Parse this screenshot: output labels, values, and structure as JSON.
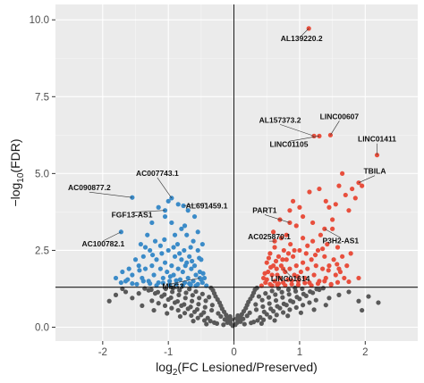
{
  "chart_data": {
    "type": "scatter",
    "title": "",
    "xlabel": "log2(FC Lesioned/Preserved)",
    "xlabel_parts": {
      "prefix": "log",
      "sub": "2",
      "rest": "(FC Lesioned/Preserved)"
    },
    "ylabel": "-log10(FDR)",
    "ylabel_parts": {
      "prefix": "−log",
      "sub": "10",
      "rest": "(FDR)"
    },
    "xlim": [
      -2.72,
      2.8
    ],
    "ylim": [
      -0.45,
      10.5
    ],
    "x_ticks": [
      -2,
      -1,
      0,
      1,
      2
    ],
    "y_ticks": [
      0.0,
      2.5,
      5.0,
      7.5,
      10.0
    ],
    "x_tick_labels": [
      "-2",
      "-1",
      "0",
      "1",
      "2"
    ],
    "y_tick_labels": [
      "0.0",
      "2.5",
      "5.0",
      "7.5",
      "10.0"
    ],
    "grid": true,
    "background": "#ebebeb",
    "reference_lines": {
      "vertical_x": 0,
      "horizontal_y": 1.3
    },
    "colors": {
      "down": "#3b8bc8",
      "up": "#e84f3d",
      "ns": "#595959",
      "label_segment": "#333333"
    },
    "highlighted_genes": [
      {
        "name": "AL139220.2",
        "x": 1.14,
        "y": 9.72,
        "group": "up"
      },
      {
        "name": "AL157373.2",
        "x": 1.22,
        "y": 6.22,
        "group": "up"
      },
      {
        "name": "LINC01105",
        "x": 1.3,
        "y": 6.22,
        "group": "up"
      },
      {
        "name": "LINC00607",
        "x": 1.47,
        "y": 6.25,
        "group": "up"
      },
      {
        "name": "LINC01411",
        "x": 2.18,
        "y": 5.6,
        "group": "up"
      },
      {
        "name": "TBILA",
        "x": 1.9,
        "y": 4.7,
        "group": "up"
      },
      {
        "name": "PART1",
        "x": 0.85,
        "y": 3.4,
        "group": "up"
      },
      {
        "name": "P3H2-AS1",
        "x": 1.38,
        "y": 3.2,
        "group": "up"
      },
      {
        "name": "AC025870.1",
        "x": 0.62,
        "y": 2.8,
        "group": "up"
      },
      {
        "name": "LINC01614",
        "x": 0.75,
        "y": 1.9,
        "group": "up"
      },
      {
        "name": "AC090877.2",
        "x": -1.55,
        "y": 4.22,
        "group": "down"
      },
      {
        "name": "AC007743.1",
        "x": -0.95,
        "y": 4.2,
        "group": "down"
      },
      {
        "name": "AL691459.1",
        "x": -0.77,
        "y": 3.95,
        "group": "down"
      },
      {
        "name": "FGF13-AS1",
        "x": -1.05,
        "y": 3.8,
        "group": "down"
      },
      {
        "name": "AC100782.1",
        "x": -1.72,
        "y": 3.1,
        "group": "down"
      },
      {
        "name": "MEG3",
        "x": -0.52,
        "y": 1.6,
        "group": "down"
      }
    ],
    "up_points": [
      [
        0.42,
        1.35
      ],
      [
        0.45,
        1.6
      ],
      [
        0.48,
        1.45
      ],
      [
        0.5,
        2.1
      ],
      [
        0.52,
        1.8
      ],
      [
        0.55,
        1.4
      ],
      [
        0.55,
        2.4
      ],
      [
        0.58,
        1.7
      ],
      [
        0.6,
        2.0
      ],
      [
        0.62,
        1.5
      ],
      [
        0.62,
        2.6
      ],
      [
        0.65,
        1.9
      ],
      [
        0.66,
        1.38
      ],
      [
        0.68,
        2.3
      ],
      [
        0.7,
        1.6
      ],
      [
        0.72,
        2.0
      ],
      [
        0.72,
        2.9
      ],
      [
        0.75,
        1.45
      ],
      [
        0.76,
        2.5
      ],
      [
        0.78,
        1.8
      ],
      [
        0.8,
        2.2
      ],
      [
        0.8,
        3.0
      ],
      [
        0.82,
        1.55
      ],
      [
        0.85,
        1.9
      ],
      [
        0.86,
        2.7
      ],
      [
        0.88,
        1.4
      ],
      [
        0.9,
        2.3
      ],
      [
        0.92,
        1.7
      ],
      [
        0.95,
        2.0
      ],
      [
        0.95,
        3.3
      ],
      [
        0.98,
        1.5
      ],
      [
        1.0,
        2.5
      ],
      [
        1.02,
        1.8
      ],
      [
        1.05,
        2.1
      ],
      [
        1.05,
        3.6
      ],
      [
        1.08,
        1.6
      ],
      [
        1.1,
        2.4
      ],
      [
        1.12,
        1.9
      ],
      [
        1.15,
        1.45
      ],
      [
        1.18,
        2.2
      ],
      [
        1.2,
        2.8
      ],
      [
        1.22,
        1.7
      ],
      [
        1.25,
        2.0
      ],
      [
        1.28,
        2.5
      ],
      [
        1.3,
        1.5
      ],
      [
        1.32,
        3.0
      ],
      [
        1.35,
        1.9
      ],
      [
        1.38,
        2.3
      ],
      [
        1.4,
        1.6
      ],
      [
        1.42,
        2.7
      ],
      [
        1.45,
        2.0
      ],
      [
        1.48,
        1.4
      ],
      [
        1.5,
        3.5
      ],
      [
        1.52,
        2.2
      ],
      [
        1.55,
        1.7
      ],
      [
        1.58,
        2.6
      ],
      [
        1.6,
        1.9
      ],
      [
        1.65,
        2.3
      ],
      [
        1.7,
        4.3
      ],
      [
        1.45,
        3.9
      ],
      [
        1.55,
        4.0
      ],
      [
        1.6,
        4.6
      ],
      [
        1.65,
        5.0
      ],
      [
        1.15,
        4.4
      ],
      [
        1.3,
        4.5
      ],
      [
        1.0,
        3.9
      ],
      [
        0.9,
        4.1
      ],
      [
        1.75,
        3.8
      ],
      [
        1.8,
        4.5
      ],
      [
        1.85,
        4.2
      ],
      [
        1.95,
        4.6
      ],
      [
        1.4,
        4.1
      ],
      [
        1.5,
        3.2
      ],
      [
        1.2,
        3.4
      ],
      [
        0.7,
        3.5
      ],
      [
        0.85,
        3.8
      ],
      [
        0.6,
        3.1
      ],
      [
        0.5,
        1.55
      ],
      [
        0.58,
        1.35
      ],
      [
        0.68,
        1.42
      ],
      [
        0.78,
        1.36
      ],
      [
        0.88,
        1.52
      ],
      [
        0.98,
        1.38
      ],
      [
        1.08,
        1.44
      ],
      [
        1.18,
        1.36
      ],
      [
        1.28,
        1.42
      ],
      [
        1.38,
        1.5
      ],
      [
        1.48,
        1.38
      ],
      [
        1.58,
        1.46
      ],
      [
        1.68,
        1.6
      ],
      [
        1.75,
        1.48
      ],
      [
        1.62,
        1.8
      ],
      [
        1.72,
        2.0
      ],
      [
        1.9,
        1.6
      ],
      [
        1.35,
        2.55
      ],
      [
        1.05,
        2.9
      ],
      [
        0.92,
        2.5
      ],
      [
        0.74,
        2.2
      ],
      [
        0.66,
        1.7
      ],
      [
        0.56,
        1.95
      ],
      [
        0.47,
        1.75
      ],
      [
        0.53,
        2.25
      ],
      [
        0.64,
        2.15
      ],
      [
        0.83,
        2.4
      ],
      [
        0.97,
        1.65
      ],
      [
        1.12,
        2.65
      ],
      [
        1.24,
        2.35
      ],
      [
        1.44,
        1.85
      ],
      [
        1.57,
        2.05
      ],
      [
        1.78,
        2.4
      ]
    ],
    "down_points": [
      [
        -0.42,
        1.35
      ],
      [
        -0.45,
        1.6
      ],
      [
        -0.48,
        1.45
      ],
      [
        -0.5,
        2.2
      ],
      [
        -0.52,
        1.8
      ],
      [
        -0.55,
        1.4
      ],
      [
        -0.55,
        2.5
      ],
      [
        -0.58,
        1.7
      ],
      [
        -0.6,
        2.0
      ],
      [
        -0.62,
        1.5
      ],
      [
        -0.62,
        2.8
      ],
      [
        -0.65,
        1.9
      ],
      [
        -0.66,
        1.38
      ],
      [
        -0.68,
        2.3
      ],
      [
        -0.7,
        1.6
      ],
      [
        -0.72,
        2.1
      ],
      [
        -0.72,
        3.0
      ],
      [
        -0.75,
        1.45
      ],
      [
        -0.76,
        2.5
      ],
      [
        -0.78,
        1.8
      ],
      [
        -0.8,
        2.2
      ],
      [
        -0.8,
        3.2
      ],
      [
        -0.82,
        1.55
      ],
      [
        -0.85,
        1.9
      ],
      [
        -0.86,
        2.7
      ],
      [
        -0.88,
        1.4
      ],
      [
        -0.9,
        2.3
      ],
      [
        -0.92,
        1.7
      ],
      [
        -0.95,
        2.0
      ],
      [
        -0.95,
        3.4
      ],
      [
        -0.98,
        1.5
      ],
      [
        -1.0,
        2.5
      ],
      [
        -1.02,
        1.8
      ],
      [
        -1.05,
        2.1
      ],
      [
        -1.05,
        3.6
      ],
      [
        -1.08,
        1.6
      ],
      [
        -1.1,
        2.4
      ],
      [
        -1.12,
        1.9
      ],
      [
        -1.15,
        1.45
      ],
      [
        -1.18,
        2.2
      ],
      [
        -1.2,
        2.8
      ],
      [
        -1.22,
        1.7
      ],
      [
        -1.25,
        2.0
      ],
      [
        -1.28,
        2.5
      ],
      [
        -1.3,
        1.5
      ],
      [
        -1.32,
        3.0
      ],
      [
        -1.35,
        1.9
      ],
      [
        -1.38,
        2.3
      ],
      [
        -1.4,
        1.6
      ],
      [
        -1.42,
        2.7
      ],
      [
        -1.45,
        2.0
      ],
      [
        -1.48,
        1.4
      ],
      [
        -1.5,
        2.2
      ],
      [
        -1.55,
        1.7
      ],
      [
        -1.6,
        1.9
      ],
      [
        -1.65,
        1.5
      ],
      [
        -1.7,
        1.8
      ],
      [
        -1.8,
        1.6
      ],
      [
        -0.6,
        3.6
      ],
      [
        -0.7,
        3.8
      ],
      [
        -0.85,
        4.0
      ],
      [
        -1.0,
        4.1
      ],
      [
        -1.15,
        3.9
      ],
      [
        -1.25,
        3.4
      ],
      [
        -0.75,
        3.3
      ],
      [
        -0.9,
        3.0
      ],
      [
        -0.55,
        3.1
      ],
      [
        -0.48,
        2.7
      ],
      [
        -0.5,
        1.55
      ],
      [
        -0.58,
        1.35
      ],
      [
        -0.68,
        1.42
      ],
      [
        -0.78,
        1.36
      ],
      [
        -0.88,
        1.52
      ],
      [
        -0.98,
        1.38
      ],
      [
        -1.08,
        1.44
      ],
      [
        -1.18,
        1.36
      ],
      [
        -1.28,
        1.42
      ],
      [
        -1.38,
        1.5
      ],
      [
        -1.55,
        1.42
      ],
      [
        -1.62,
        1.55
      ],
      [
        -1.72,
        1.45
      ],
      [
        -0.47,
        1.75
      ],
      [
        -0.53,
        2.25
      ],
      [
        -0.64,
        2.15
      ],
      [
        -0.83,
        2.4
      ],
      [
        -0.97,
        1.65
      ],
      [
        -1.12,
        2.65
      ],
      [
        -1.24,
        2.35
      ],
      [
        -1.44,
        1.85
      ],
      [
        -1.35,
        2.6
      ],
      [
        -0.66,
        2.6
      ],
      [
        -0.74,
        2.0
      ],
      [
        -0.92,
        2.6
      ],
      [
        -1.06,
        2.85
      ]
    ],
    "ns_points": [
      [
        -0.02,
        0.05
      ],
      [
        0.02,
        0.08
      ],
      [
        -0.05,
        0.12
      ],
      [
        0.05,
        0.15
      ],
      [
        -0.08,
        0.2
      ],
      [
        0.08,
        0.22
      ],
      [
        -0.1,
        0.3
      ],
      [
        0.1,
        0.32
      ],
      [
        -0.12,
        0.4
      ],
      [
        0.12,
        0.42
      ],
      [
        -0.15,
        0.5
      ],
      [
        0.15,
        0.52
      ],
      [
        -0.18,
        0.6
      ],
      [
        0.18,
        0.62
      ],
      [
        -0.2,
        0.7
      ],
      [
        0.2,
        0.72
      ],
      [
        -0.22,
        0.8
      ],
      [
        0.22,
        0.82
      ],
      [
        -0.25,
        0.9
      ],
      [
        0.25,
        0.92
      ],
      [
        -0.28,
        1.0
      ],
      [
        0.28,
        1.02
      ],
      [
        -0.3,
        1.1
      ],
      [
        0.3,
        1.12
      ],
      [
        -0.32,
        1.2
      ],
      [
        0.32,
        1.22
      ],
      [
        -0.35,
        1.28
      ],
      [
        0.35,
        1.28
      ],
      [
        -0.06,
        0.35
      ],
      [
        0.06,
        0.38
      ],
      [
        -0.14,
        0.25
      ],
      [
        0.14,
        0.27
      ],
      [
        -0.24,
        0.45
      ],
      [
        0.24,
        0.47
      ],
      [
        -0.34,
        0.55
      ],
      [
        0.34,
        0.57
      ],
      [
        -0.44,
        0.65
      ],
      [
        0.44,
        0.67
      ],
      [
        -0.54,
        0.75
      ],
      [
        0.54,
        0.77
      ],
      [
        -0.64,
        0.85
      ],
      [
        0.64,
        0.87
      ],
      [
        -0.74,
        0.95
      ],
      [
        0.74,
        0.97
      ],
      [
        -0.84,
        1.05
      ],
      [
        0.84,
        1.07
      ],
      [
        -0.94,
        1.15
      ],
      [
        0.94,
        1.17
      ],
      [
        -1.04,
        1.25
      ],
      [
        1.04,
        1.25
      ],
      [
        -0.4,
        0.3
      ],
      [
        0.4,
        0.32
      ],
      [
        -0.5,
        0.4
      ],
      [
        0.5,
        0.42
      ],
      [
        -0.6,
        0.5
      ],
      [
        0.6,
        0.52
      ],
      [
        -0.7,
        0.6
      ],
      [
        0.7,
        0.62
      ],
      [
        -0.8,
        0.7
      ],
      [
        0.8,
        0.72
      ],
      [
        -0.9,
        0.8
      ],
      [
        0.9,
        0.82
      ],
      [
        -1.0,
        0.9
      ],
      [
        1.0,
        0.92
      ],
      [
        -1.1,
        1.0
      ],
      [
        1.1,
        1.02
      ],
      [
        -1.2,
        1.1
      ],
      [
        1.2,
        1.12
      ],
      [
        -1.3,
        1.2
      ],
      [
        1.3,
        1.22
      ],
      [
        -0.3,
        0.15
      ],
      [
        0.3,
        0.17
      ],
      [
        -0.45,
        0.22
      ],
      [
        0.45,
        0.24
      ],
      [
        -0.55,
        0.3
      ],
      [
        0.55,
        0.32
      ],
      [
        -0.65,
        0.38
      ],
      [
        0.65,
        0.4
      ],
      [
        -0.75,
        0.46
      ],
      [
        0.75,
        0.48
      ],
      [
        -0.85,
        0.55
      ],
      [
        0.85,
        0.57
      ],
      [
        -0.95,
        0.62
      ],
      [
        0.95,
        0.64
      ],
      [
        -1.05,
        0.7
      ],
      [
        1.05,
        0.72
      ],
      [
        -1.15,
        0.78
      ],
      [
        1.15,
        0.8
      ],
      [
        -1.25,
        0.86
      ],
      [
        1.25,
        0.88
      ],
      [
        -0.16,
        0.08
      ],
      [
        0.16,
        0.1
      ],
      [
        -0.26,
        0.12
      ],
      [
        0.26,
        0.14
      ],
      [
        -0.36,
        0.2
      ],
      [
        0.36,
        0.22
      ],
      [
        -0.46,
        0.48
      ],
      [
        0.46,
        0.5
      ],
      [
        -0.56,
        0.58
      ],
      [
        0.56,
        0.6
      ],
      [
        -0.66,
        0.66
      ],
      [
        0.66,
        0.68
      ],
      [
        -0.76,
        0.74
      ],
      [
        0.76,
        0.76
      ],
      [
        -0.86,
        0.84
      ],
      [
        0.86,
        0.86
      ],
      [
        -0.96,
        0.96
      ],
      [
        0.96,
        0.98
      ],
      [
        -1.06,
        1.06
      ],
      [
        1.06,
        1.08
      ],
      [
        -1.16,
        1.14
      ],
      [
        1.16,
        1.16
      ],
      [
        -1.26,
        1.22
      ],
      [
        1.26,
        1.24
      ],
      [
        -1.36,
        1.26
      ],
      [
        1.36,
        1.27
      ],
      [
        -0.38,
        0.98
      ],
      [
        0.38,
        1.0
      ],
      [
        -0.48,
        1.08
      ],
      [
        0.48,
        1.1
      ],
      [
        -0.58,
        1.16
      ],
      [
        0.58,
        1.18
      ],
      [
        -0.68,
        1.24
      ],
      [
        0.68,
        1.26
      ],
      [
        -0.2,
        0.35
      ],
      [
        0.2,
        0.37
      ],
      [
        -0.1,
        0.15
      ],
      [
        0.1,
        0.18
      ],
      [
        -0.04,
        0.25
      ],
      [
        0.04,
        0.28
      ],
      [
        1.45,
        0.95
      ],
      [
        1.6,
        1.05
      ],
      [
        1.75,
        1.15
      ],
      [
        1.9,
        0.85
      ],
      [
        2.05,
        1.0
      ],
      [
        2.2,
        0.8
      ],
      [
        1.95,
        0.55
      ],
      [
        -1.45,
        1.1
      ],
      [
        -1.55,
        0.95
      ],
      [
        -1.65,
        1.15
      ],
      [
        -1.8,
        1.05
      ],
      [
        -1.9,
        0.85
      ],
      [
        -1.7,
        1.25
      ],
      [
        -0.42,
        0.1
      ],
      [
        0.42,
        0.12
      ],
      [
        -0.62,
        0.2
      ],
      [
        0.62,
        0.22
      ],
      [
        -0.82,
        0.35
      ],
      [
        0.82,
        0.37
      ],
      [
        -1.02,
        0.45
      ],
      [
        1.02,
        0.47
      ],
      [
        -1.22,
        0.55
      ],
      [
        1.22,
        0.57
      ],
      [
        -1.4,
        0.7
      ],
      [
        1.4,
        0.72
      ],
      [
        -0.33,
        0.72
      ],
      [
        0.33,
        0.74
      ],
      [
        -0.43,
        0.86
      ],
      [
        0.43,
        0.88
      ],
      [
        -0.53,
        0.95
      ],
      [
        0.53,
        0.97
      ],
      [
        -0.63,
        1.04
      ],
      [
        0.63,
        1.06
      ],
      [
        -0.73,
        1.12
      ],
      [
        0.73,
        1.14
      ],
      [
        -0.83,
        1.2
      ],
      [
        0.83,
        1.22
      ],
      [
        -0.93,
        1.27
      ],
      [
        0.93,
        1.28
      ]
    ]
  }
}
